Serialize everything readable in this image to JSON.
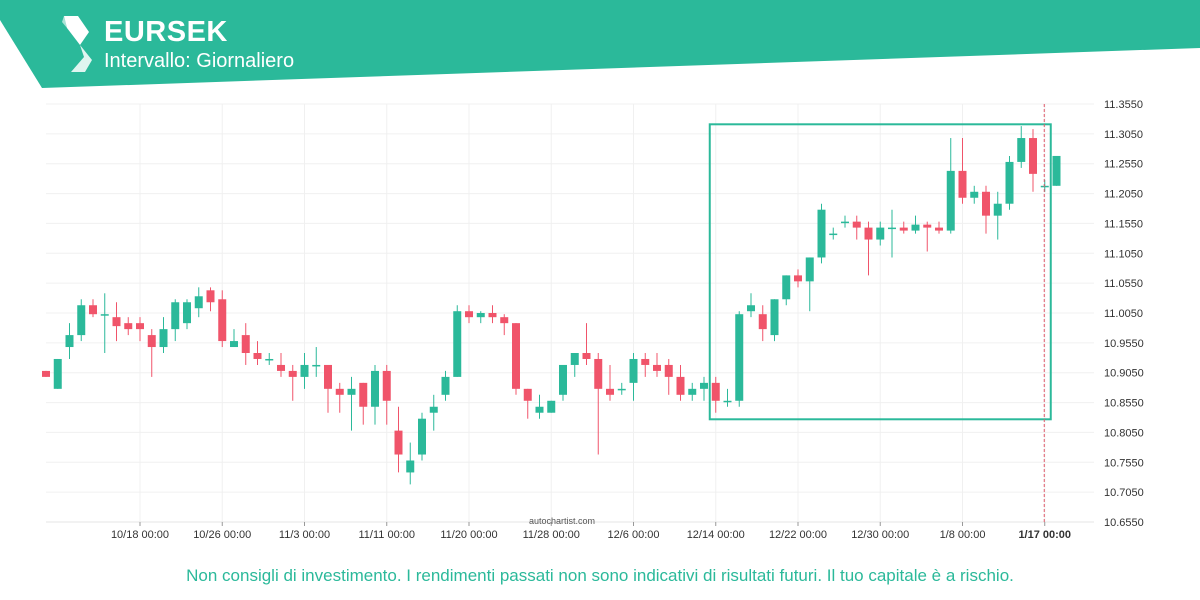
{
  "header": {
    "symbol": "EURSEK",
    "interval": "Intervallo: Giornaliero",
    "brand_color": "#2bb99a",
    "logo_icon": "autochartist-logo-icon"
  },
  "watermark": "autochartist.com",
  "disclaimer": "Non consigli di investimento. I rendimenti passati non sono indicativi di risultati futuri. Il tuo capitale è a rischio.",
  "chart_data": {
    "type": "candlestick",
    "title": "EURSEK",
    "ylim": [
      10.655,
      11.355
    ],
    "grid": true,
    "colors": {
      "up": "#2bb99a",
      "down": "#f0546a",
      "pattern_box": "#2bb99a"
    },
    "y_ticks": [
      "11.3550",
      "11.3050",
      "11.2550",
      "11.2050",
      "11.1550",
      "11.1050",
      "11.0550",
      "11.0050",
      "10.9550",
      "10.9050",
      "10.8550",
      "10.8050",
      "10.7550",
      "10.7050",
      "10.6550"
    ],
    "x_ticks": [
      {
        "index": 8,
        "label": "10/18 00:00"
      },
      {
        "index": 15,
        "label": "10/26 00:00"
      },
      {
        "index": 22,
        "label": "11/3 00:00"
      },
      {
        "index": 29,
        "label": "11/11 00:00"
      },
      {
        "index": 36,
        "label": "11/20 00:00"
      },
      {
        "index": 43,
        "label": "11/28 00:00"
      },
      {
        "index": 50,
        "label": "12/6 00:00"
      },
      {
        "index": 57,
        "label": "12/14 00:00"
      },
      {
        "index": 64,
        "label": "12/22 00:00"
      },
      {
        "index": 71,
        "label": "12/30 00:00"
      },
      {
        "index": 78,
        "label": "1/8 00:00"
      },
      {
        "index": 85,
        "label": "1/17 00:00",
        "bold": true
      }
    ],
    "pattern_box": {
      "from_index": 57,
      "to_index": 85,
      "high": 11.321,
      "low": 10.827
    },
    "current_marker_index": 85,
    "candles": [
      {
        "o": 10.908,
        "h": 10.908,
        "l": 10.898,
        "c": 10.898
      },
      {
        "o": 10.878,
        "h": 10.928,
        "l": 10.878,
        "c": 10.928
      },
      {
        "o": 10.948,
        "h": 10.988,
        "l": 10.928,
        "c": 10.968
      },
      {
        "o": 10.968,
        "h": 11.028,
        "l": 10.958,
        "c": 11.018
      },
      {
        "o": 11.018,
        "h": 11.028,
        "l": 10.998,
        "c": 11.003
      },
      {
        "o": 11.003,
        "h": 11.038,
        "l": 10.938,
        "c": 11.003
      },
      {
        "o": 10.998,
        "h": 11.023,
        "l": 10.958,
        "c": 10.983
      },
      {
        "o": 10.988,
        "h": 10.998,
        "l": 10.968,
        "c": 10.978
      },
      {
        "o": 10.988,
        "h": 10.998,
        "l": 10.958,
        "c": 10.978
      },
      {
        "o": 10.968,
        "h": 10.978,
        "l": 10.898,
        "c": 10.948
      },
      {
        "o": 10.948,
        "h": 10.998,
        "l": 10.938,
        "c": 10.978
      },
      {
        "o": 10.978,
        "h": 11.028,
        "l": 10.958,
        "c": 11.023
      },
      {
        "o": 10.988,
        "h": 11.028,
        "l": 10.978,
        "c": 11.023
      },
      {
        "o": 11.013,
        "h": 11.048,
        "l": 10.998,
        "c": 11.033
      },
      {
        "o": 11.043,
        "h": 11.048,
        "l": 11.008,
        "c": 11.023
      },
      {
        "o": 11.028,
        "h": 11.043,
        "l": 10.948,
        "c": 10.958
      },
      {
        "o": 10.948,
        "h": 10.978,
        "l": 10.948,
        "c": 10.958
      },
      {
        "o": 10.968,
        "h": 10.988,
        "l": 10.918,
        "c": 10.938
      },
      {
        "o": 10.938,
        "h": 10.958,
        "l": 10.918,
        "c": 10.928
      },
      {
        "o": 10.928,
        "h": 10.938,
        "l": 10.918,
        "c": 10.928
      },
      {
        "o": 10.918,
        "h": 10.938,
        "l": 10.898,
        "c": 10.908
      },
      {
        "o": 10.908,
        "h": 10.918,
        "l": 10.858,
        "c": 10.898
      },
      {
        "o": 10.898,
        "h": 10.938,
        "l": 10.878,
        "c": 10.918
      },
      {
        "o": 10.918,
        "h": 10.948,
        "l": 10.898,
        "c": 10.918
      },
      {
        "o": 10.918,
        "h": 10.918,
        "l": 10.838,
        "c": 10.878
      },
      {
        "o": 10.878,
        "h": 10.888,
        "l": 10.838,
        "c": 10.868
      },
      {
        "o": 10.868,
        "h": 10.898,
        "l": 10.808,
        "c": 10.878
      },
      {
        "o": 10.888,
        "h": 10.888,
        "l": 10.818,
        "c": 10.848
      },
      {
        "o": 10.848,
        "h": 10.918,
        "l": 10.818,
        "c": 10.908
      },
      {
        "o": 10.908,
        "h": 10.918,
        "l": 10.818,
        "c": 10.858
      },
      {
        "o": 10.808,
        "h": 10.848,
        "l": 10.738,
        "c": 10.768
      },
      {
        "o": 10.738,
        "h": 10.788,
        "l": 10.718,
        "c": 10.758
      },
      {
        "o": 10.768,
        "h": 10.838,
        "l": 10.758,
        "c": 10.828
      },
      {
        "o": 10.838,
        "h": 10.868,
        "l": 10.808,
        "c": 10.848
      },
      {
        "o": 10.868,
        "h": 10.908,
        "l": 10.858,
        "c": 10.898
      },
      {
        "o": 10.898,
        "h": 11.018,
        "l": 10.898,
        "c": 11.008
      },
      {
        "o": 11.008,
        "h": 11.018,
        "l": 10.988,
        "c": 10.998
      },
      {
        "o": 10.998,
        "h": 11.008,
        "l": 10.988,
        "c": 11.005
      },
      {
        "o": 11.005,
        "h": 11.018,
        "l": 10.988,
        "c": 10.998
      },
      {
        "o": 10.998,
        "h": 11.003,
        "l": 10.968,
        "c": 10.988
      },
      {
        "o": 10.988,
        "h": 10.988,
        "l": 10.868,
        "c": 10.878
      },
      {
        "o": 10.878,
        "h": 10.878,
        "l": 10.828,
        "c": 10.858
      },
      {
        "o": 10.838,
        "h": 10.868,
        "l": 10.828,
        "c": 10.848
      },
      {
        "o": 10.838,
        "h": 10.858,
        "l": 10.838,
        "c": 10.858
      },
      {
        "o": 10.868,
        "h": 10.918,
        "l": 10.858,
        "c": 10.918
      },
      {
        "o": 10.918,
        "h": 10.938,
        "l": 10.898,
        "c": 10.938
      },
      {
        "o": 10.938,
        "h": 10.988,
        "l": 10.918,
        "c": 10.928
      },
      {
        "o": 10.928,
        "h": 10.938,
        "l": 10.768,
        "c": 10.878
      },
      {
        "o": 10.878,
        "h": 10.918,
        "l": 10.858,
        "c": 10.868
      },
      {
        "o": 10.878,
        "h": 10.888,
        "l": 10.868,
        "c": 10.878
      },
      {
        "o": 10.888,
        "h": 10.938,
        "l": 10.858,
        "c": 10.928
      },
      {
        "o": 10.928,
        "h": 10.938,
        "l": 10.898,
        "c": 10.918
      },
      {
        "o": 10.918,
        "h": 10.938,
        "l": 10.898,
        "c": 10.908
      },
      {
        "o": 10.918,
        "h": 10.928,
        "l": 10.868,
        "c": 10.898
      },
      {
        "o": 10.898,
        "h": 10.918,
        "l": 10.858,
        "c": 10.868
      },
      {
        "o": 10.868,
        "h": 10.888,
        "l": 10.858,
        "c": 10.878
      },
      {
        "o": 10.878,
        "h": 10.898,
        "l": 10.858,
        "c": 10.888
      },
      {
        "o": 10.888,
        "h": 10.898,
        "l": 10.838,
        "c": 10.858
      },
      {
        "o": 10.858,
        "h": 10.878,
        "l": 10.848,
        "c": 10.858
      },
      {
        "o": 10.858,
        "h": 11.008,
        "l": 10.848,
        "c": 11.003
      },
      {
        "o": 11.008,
        "h": 11.038,
        "l": 10.998,
        "c": 11.018
      },
      {
        "o": 11.003,
        "h": 11.018,
        "l": 10.958,
        "c": 10.978
      },
      {
        "o": 10.968,
        "h": 11.028,
        "l": 10.958,
        "c": 11.028
      },
      {
        "o": 11.028,
        "h": 11.068,
        "l": 11.018,
        "c": 11.068
      },
      {
        "o": 11.068,
        "h": 11.078,
        "l": 11.048,
        "c": 11.058
      },
      {
        "o": 11.058,
        "h": 11.098,
        "l": 11.008,
        "c": 11.098
      },
      {
        "o": 11.098,
        "h": 11.188,
        "l": 11.088,
        "c": 11.178
      },
      {
        "o": 11.138,
        "h": 11.148,
        "l": 11.128,
        "c": 11.138
      },
      {
        "o": 11.158,
        "h": 11.168,
        "l": 11.148,
        "c": 11.158
      },
      {
        "o": 11.158,
        "h": 11.168,
        "l": 11.128,
        "c": 11.148
      },
      {
        "o": 11.148,
        "h": 11.158,
        "l": 11.068,
        "c": 11.128
      },
      {
        "o": 11.128,
        "h": 11.158,
        "l": 11.118,
        "c": 11.148
      },
      {
        "o": 11.148,
        "h": 11.178,
        "l": 11.098,
        "c": 11.148
      },
      {
        "o": 11.148,
        "h": 11.158,
        "l": 11.138,
        "c": 11.143
      },
      {
        "o": 11.143,
        "h": 11.168,
        "l": 11.138,
        "c": 11.153
      },
      {
        "o": 11.153,
        "h": 11.158,
        "l": 11.108,
        "c": 11.148
      },
      {
        "o": 11.148,
        "h": 11.158,
        "l": 11.138,
        "c": 11.143
      },
      {
        "o": 11.143,
        "h": 11.298,
        "l": 11.138,
        "c": 11.243
      },
      {
        "o": 11.243,
        "h": 11.298,
        "l": 11.188,
        "c": 11.198
      },
      {
        "o": 11.198,
        "h": 11.218,
        "l": 11.188,
        "c": 11.208
      },
      {
        "o": 11.208,
        "h": 11.218,
        "l": 11.138,
        "c": 11.168
      },
      {
        "o": 11.168,
        "h": 11.208,
        "l": 11.128,
        "c": 11.188
      },
      {
        "o": 11.188,
        "h": 11.268,
        "l": 11.178,
        "c": 11.258
      },
      {
        "o": 11.258,
        "h": 11.318,
        "l": 11.248,
        "c": 11.298
      },
      {
        "o": 11.298,
        "h": 11.313,
        "l": 11.208,
        "c": 11.238
      },
      {
        "o": 11.218,
        "h": 11.228,
        "l": 11.208,
        "c": 11.218
      },
      {
        "o": 11.218,
        "h": 11.268,
        "l": 11.218,
        "c": 11.268
      }
    ]
  }
}
